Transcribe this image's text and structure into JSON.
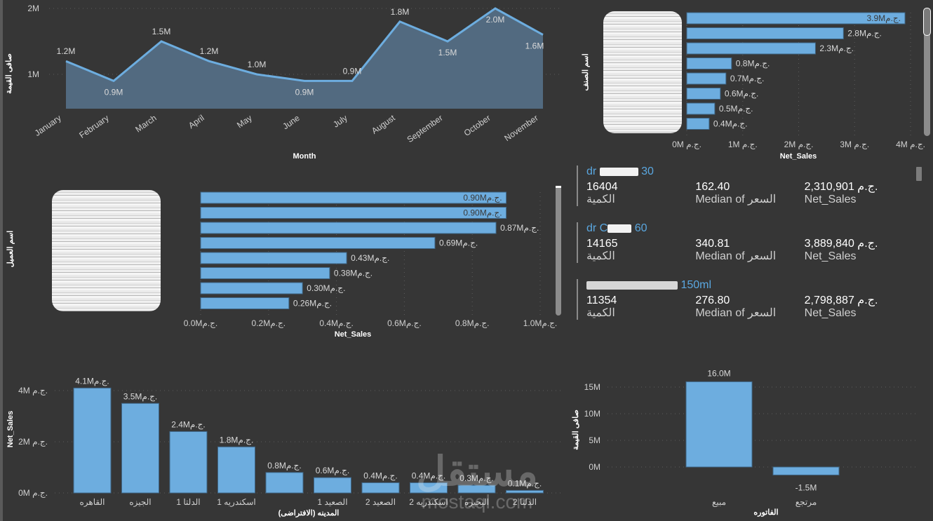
{
  "colors": {
    "bar": "#6daddf",
    "area_line": "#6daddf",
    "area_fill": "#526a80",
    "background": "#363636",
    "card_title": "#5aa7e0"
  },
  "currency": "ج.م.",
  "monthly_chart": {
    "ylabel": "صافى القيمة",
    "xlabel": "Month",
    "yticks": [
      "2M",
      "1M"
    ],
    "chart_data": {
      "type": "area",
      "x": [
        "January",
        "February",
        "March",
        "April",
        "May",
        "June",
        "July",
        "August",
        "September",
        "October",
        "November"
      ],
      "values": [
        1.2,
        0.9,
        1.5,
        1.2,
        1.0,
        0.9,
        0.9,
        1.8,
        1.5,
        2.0,
        1.6
      ],
      "labels": [
        "1.2M",
        "0.9M",
        "1.5M",
        "1.2M",
        "1.0M",
        "0.9M",
        "0.9M",
        "1.8M",
        "1.5M",
        "2.0M",
        "1.6M"
      ],
      "ylim": [
        0.5,
        2.0
      ],
      "unit": "M"
    }
  },
  "product_chart": {
    "ylabel": "اسم الصنف",
    "xlabel": "Net_Sales",
    "xticks": [
      "0M ج.م.",
      "1M ج.م.",
      "2M ج.م.",
      "3M ج.م.",
      "4M ج.م."
    ],
    "chart_data": {
      "type": "bar",
      "orientation": "horizontal",
      "values": [
        3.9,
        2.8,
        2.3,
        0.8,
        0.7,
        0.6,
        0.5,
        0.4
      ],
      "labels": [
        "3.9Mج.م.",
        "2.8Mج.م.",
        "2.3Mج.م.",
        "0.8Mج.م.",
        "0.7Mج.م.",
        "0.6Mج.م.",
        "0.5Mج.م.",
        "0.4Mج.م."
      ],
      "xlim": [
        0,
        4
      ],
      "unit": "M"
    }
  },
  "customer_chart": {
    "ylabel": "اسم العميل",
    "xlabel": "Net_Sales",
    "xticks": [
      "0.0Mج.م.",
      "0.2Mج.م.",
      "0.4Mج.م.",
      "0.6Mج.م.",
      "0.8Mج.م.",
      "1.0Mج.م."
    ],
    "chart_data": {
      "type": "bar",
      "orientation": "horizontal",
      "values": [
        0.9,
        0.9,
        0.87,
        0.69,
        0.43,
        0.38,
        0.3,
        0.26
      ],
      "labels": [
        "0.90Mج.م.",
        "0.90Mج.م.",
        "0.87Mج.م.",
        "0.69Mج.م.",
        "0.43Mج.م.",
        "0.38Mج.م.",
        "0.30Mج.م.",
        "0.26Mج.م."
      ],
      "xlim": [
        0,
        1.0
      ],
      "unit": "M"
    }
  },
  "cards": [
    {
      "title_start": "dr",
      "title_end": "30",
      "qty": "16404",
      "qty_label": "الكمية",
      "median": "162.40",
      "median_label": "Median of السعر",
      "sales": "2,310,901 ج.م.",
      "sales_label": "Net_Sales"
    },
    {
      "title_start": "dr C",
      "title_end": "60",
      "qty": "14165",
      "qty_label": "الكمية",
      "median": "340.81",
      "median_label": "Median of السعر",
      "sales": "3,889,840 ج.م.",
      "sales_label": "Net_Sales"
    },
    {
      "title_start": "",
      "title_end": "150ml",
      "qty": "11354",
      "qty_label": "الكمية",
      "median": "276.80",
      "median_label": "Median of السعر",
      "sales": "2,798,887 ج.م.",
      "sales_label": "Net_Sales"
    }
  ],
  "city_chart": {
    "ylabel": "Net_Sales",
    "xlabel": "المدينه (الافتراضى)",
    "yticks": [
      "4M ج.م.",
      "2M ج.م.",
      "0M ج.م."
    ],
    "chart_data": {
      "type": "bar",
      "categories": [
        "القاهره",
        "الجيزه",
        "الدلتا 1",
        "اسكندريه 1",
        "",
        "الصعيد 1",
        "الصعيد 2",
        "اسكندريه 2",
        "البحيره",
        "الدلتا 2"
      ],
      "values": [
        4.1,
        3.5,
        2.4,
        1.8,
        0.8,
        0.6,
        0.4,
        0.4,
        0.3,
        0.1
      ],
      "labels": [
        "4.1Mج.م.",
        "3.5Mج.م.",
        "2.4Mج.م.",
        "1.8Mج.م.",
        "0.8Mج.م.",
        "0.6Mج.م.",
        "0.4Mج.م.",
        "0.4Mج.م.",
        "0.3Mج.م.",
        "0.1Mج.م."
      ],
      "ylim": [
        0,
        4
      ],
      "unit": "M"
    }
  },
  "invoice_chart": {
    "ylabel": "صافى القيمة",
    "xlabel": "الفاتوره",
    "yticks": [
      "15M",
      "10M",
      "5M",
      "0M"
    ],
    "chart_data": {
      "type": "bar",
      "categories": [
        "مبيع",
        "مرتجع"
      ],
      "values": [
        16.0,
        -1.5
      ],
      "labels": [
        "16.0M",
        "-1.5M"
      ],
      "ylim": [
        -1.5,
        15
      ],
      "unit": "M"
    }
  },
  "watermark": {
    "arabic": "مستقل",
    "latin": "mostaql.com"
  }
}
